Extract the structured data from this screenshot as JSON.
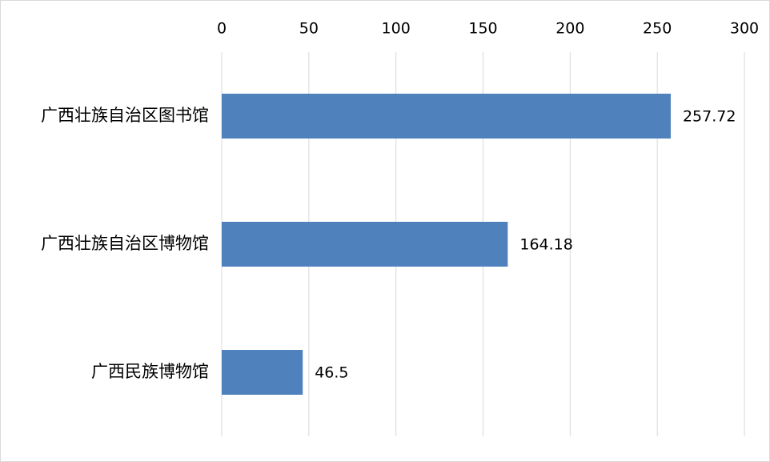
{
  "chart_data": {
    "type": "barh",
    "categories": [
      "广西壮族自治区图书馆",
      "广西壮族自治区博物馆",
      "广西民族博物馆"
    ],
    "values": [
      257.72,
      164.18,
      46.5
    ],
    "color": "#4f81bd",
    "xlim": [
      0,
      300
    ],
    "xticks": [
      0,
      50,
      100,
      150,
      200,
      250,
      300
    ],
    "grid": true
  }
}
